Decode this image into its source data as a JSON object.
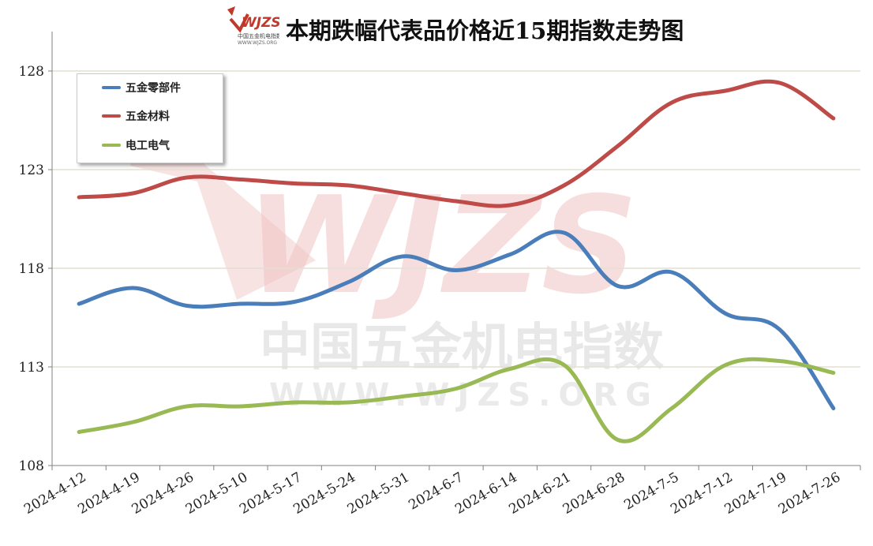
{
  "title": "本期跌幅代表品价格近15期指数走势图",
  "logo": {
    "mark": "WJZS",
    "caption": "中国五金机电指数",
    "url": "WWW.WJZS.ORG"
  },
  "watermark": {
    "mark": "WJZS",
    "line1": "中国五金机电指数",
    "line2": "WWW.WJZS.ORG"
  },
  "colors": {
    "wujin_lingbujian": "#4a7ebb",
    "wujin_cailiao": "#be4b48",
    "diangong_dianqi": "#98b954",
    "grid": "#e3e0d2",
    "axis": "#808080"
  },
  "chart_data": {
    "type": "line",
    "title": "本期跌幅代表品价格近15期指数走势图",
    "xlabel": "",
    "ylabel": "",
    "ylim": [
      108,
      130
    ],
    "yticks": [
      108,
      113,
      118,
      123,
      128
    ],
    "categories": [
      "2024-4-12",
      "2024-4-19",
      "2024-4-26",
      "2024-5-10",
      "2024-5-17",
      "2024-5-24",
      "2024-5-31",
      "2024-6-7",
      "2024-6-14",
      "2024-6-21",
      "2024-6-28",
      "2024-7-5",
      "2024-7-12",
      "2024-7-19",
      "2024-7-26"
    ],
    "grid": true,
    "legend_position": "top-left",
    "series": [
      {
        "name": "五金零部件",
        "color": "#4a7ebb",
        "values": [
          116.2,
          117.0,
          116.1,
          116.2,
          116.3,
          117.3,
          118.6,
          117.9,
          118.7,
          119.8,
          117.1,
          117.8,
          115.7,
          114.9,
          110.9
        ]
      },
      {
        "name": "五金材料",
        "color": "#be4b48",
        "values": [
          121.6,
          121.8,
          122.6,
          122.5,
          122.3,
          122.2,
          121.8,
          121.4,
          121.2,
          122.2,
          124.2,
          126.4,
          127.0,
          127.4,
          125.6
        ]
      },
      {
        "name": "电工电气",
        "color": "#98b954",
        "values": [
          109.7,
          110.2,
          111.0,
          111.0,
          111.2,
          111.2,
          111.5,
          111.9,
          112.9,
          113.1,
          109.3,
          110.9,
          113.1,
          113.3,
          112.7
        ]
      }
    ]
  }
}
